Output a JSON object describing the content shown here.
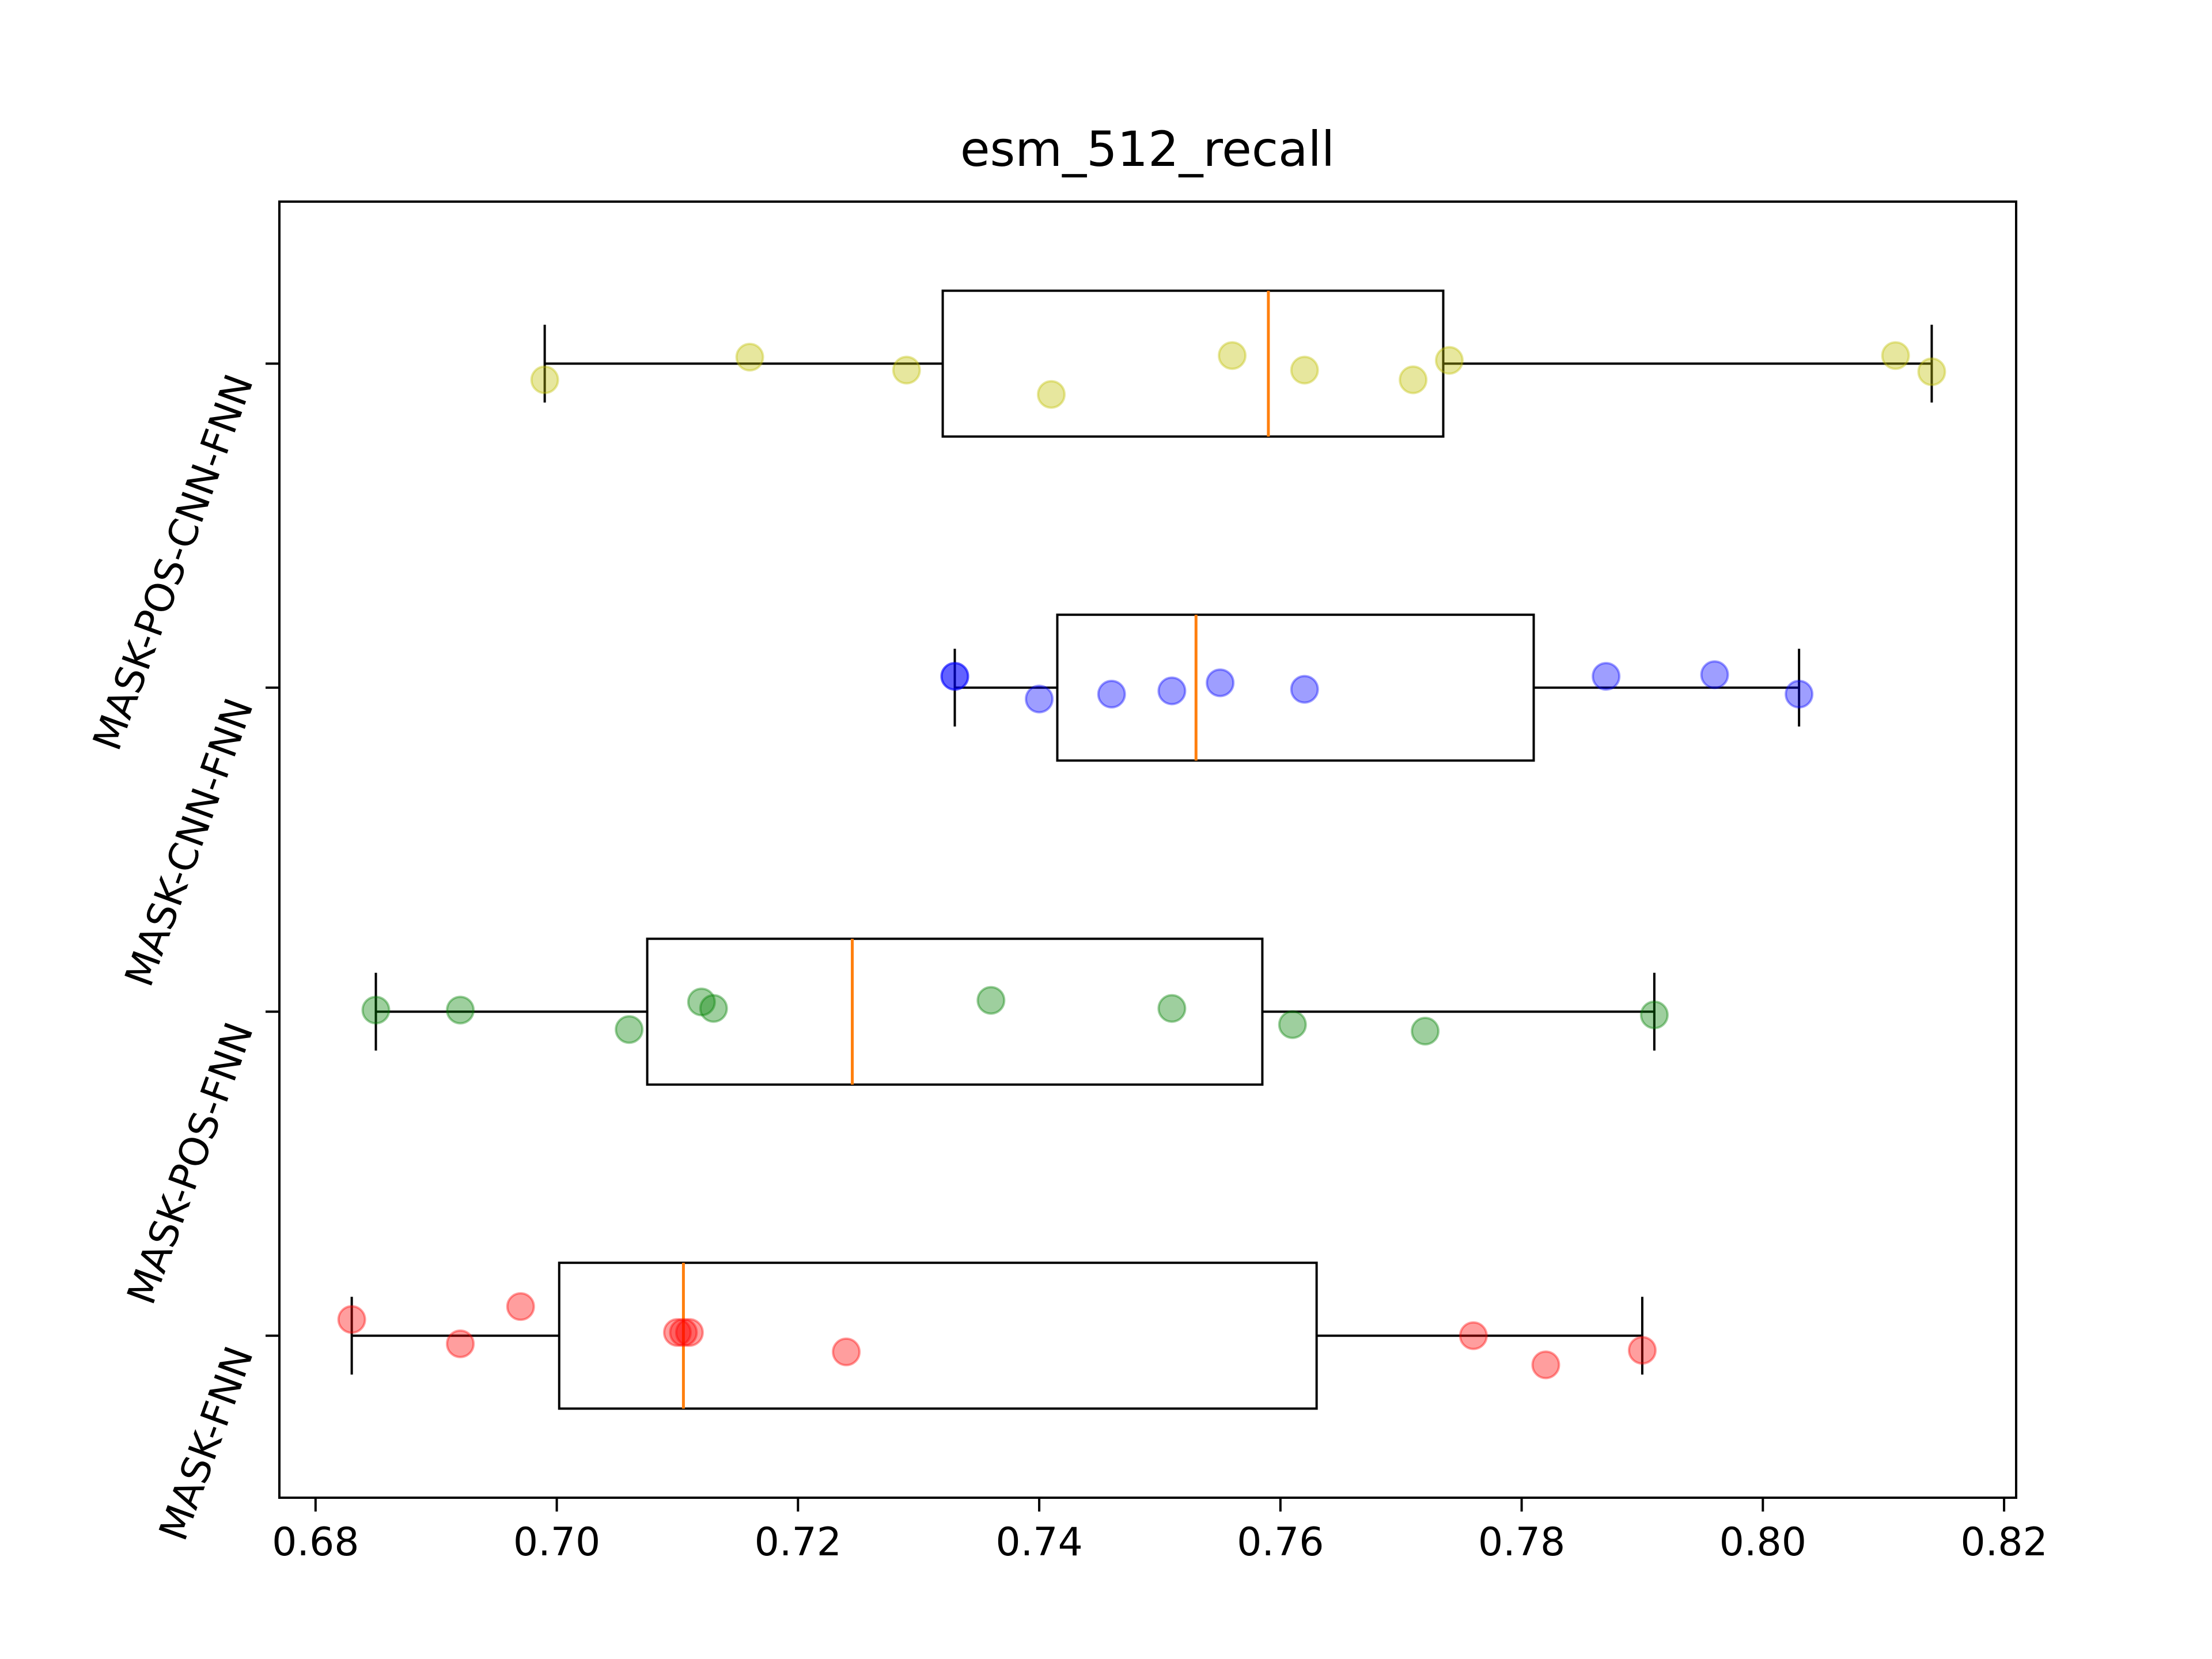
{
  "chart_data": {
    "type": "box",
    "title": "esm_512_recall",
    "orientation": "horizontal",
    "xlim": [
      0.677,
      0.821
    ],
    "xticks": [
      0.68,
      0.7,
      0.72,
      0.74,
      0.76,
      0.78,
      0.8,
      0.82
    ],
    "xtick_labels": [
      "0.68",
      "0.70",
      "0.72",
      "0.74",
      "0.76",
      "0.78",
      "0.80",
      "0.82"
    ],
    "ylim": [
      0.5,
      4.5
    ],
    "grid": false,
    "median_color": "#ff7f0e",
    "series": [
      {
        "name": "MASK-FNN",
        "color": "#ff0000",
        "whisker_low": 0.683,
        "q1": 0.7002,
        "median": 0.7105,
        "q3": 0.763,
        "whisker_high": 0.79,
        "points": [
          {
            "x": 0.683,
            "jitter": 0.05
          },
          {
            "x": 0.692,
            "jitter": -0.025
          },
          {
            "x": 0.697,
            "jitter": 0.09
          },
          {
            "x": 0.71,
            "jitter": 0.01
          },
          {
            "x": 0.7105,
            "jitter": 0.01
          },
          {
            "x": 0.711,
            "jitter": 0.01
          },
          {
            "x": 0.724,
            "jitter": -0.05
          },
          {
            "x": 0.776,
            "jitter": 0.0
          },
          {
            "x": 0.782,
            "jitter": -0.09
          },
          {
            "x": 0.79,
            "jitter": -0.045
          }
        ]
      },
      {
        "name": "MASK-POS-FNN",
        "color": "#008000",
        "whisker_low": 0.685,
        "q1": 0.7075,
        "median": 0.7245,
        "q3": 0.7585,
        "whisker_high": 0.791,
        "points": [
          {
            "x": 0.685,
            "jitter": 0.005
          },
          {
            "x": 0.692,
            "jitter": 0.005
          },
          {
            "x": 0.706,
            "jitter": -0.055
          },
          {
            "x": 0.712,
            "jitter": 0.03
          },
          {
            "x": 0.713,
            "jitter": 0.01
          },
          {
            "x": 0.736,
            "jitter": 0.035
          },
          {
            "x": 0.751,
            "jitter": 0.01
          },
          {
            "x": 0.761,
            "jitter": -0.04
          },
          {
            "x": 0.772,
            "jitter": -0.06
          },
          {
            "x": 0.791,
            "jitter": -0.01
          }
        ]
      },
      {
        "name": "MASK-CNN-FNN",
        "color": "#0000ff",
        "whisker_low": 0.733,
        "q1": 0.7415,
        "median": 0.753,
        "q3": 0.781,
        "whisker_high": 0.803,
        "points": [
          {
            "x": 0.733,
            "jitter": 0.035
          },
          {
            "x": 0.733,
            "jitter": 0.035
          },
          {
            "x": 0.74,
            "jitter": -0.035
          },
          {
            "x": 0.746,
            "jitter": -0.02
          },
          {
            "x": 0.751,
            "jitter": -0.01
          },
          {
            "x": 0.755,
            "jitter": 0.015
          },
          {
            "x": 0.762,
            "jitter": -0.005
          },
          {
            "x": 0.787,
            "jitter": 0.035
          },
          {
            "x": 0.796,
            "jitter": 0.04
          },
          {
            "x": 0.803,
            "jitter": -0.02
          }
        ]
      },
      {
        "name": "MASK-POS-CNN-FNN",
        "color": "#bfbf00",
        "whisker_low": 0.699,
        "q1": 0.732,
        "median": 0.759,
        "q3": 0.7735,
        "whisker_high": 0.814,
        "points": [
          {
            "x": 0.699,
            "jitter": -0.05
          },
          {
            "x": 0.716,
            "jitter": 0.02
          },
          {
            "x": 0.729,
            "jitter": -0.02
          },
          {
            "x": 0.741,
            "jitter": -0.095
          },
          {
            "x": 0.756,
            "jitter": 0.025
          },
          {
            "x": 0.762,
            "jitter": -0.02
          },
          {
            "x": 0.771,
            "jitter": -0.05
          },
          {
            "x": 0.774,
            "jitter": 0.01
          },
          {
            "x": 0.811,
            "jitter": 0.025
          },
          {
            "x": 0.814,
            "jitter": -0.025
          }
        ]
      }
    ]
  }
}
